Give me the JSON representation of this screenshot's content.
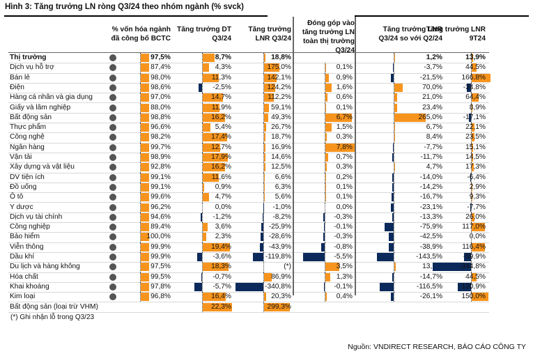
{
  "title": "Hình 3: Tăng trưởng LN ròng Q3/24 theo nhóm ngành (% svck)",
  "headers": [
    "% vốn hóa ngành\nđã công bố BCTC",
    "Tăng trưởng DT\nQ3/24",
    "Tăng trưởng\nLNR Q3/24",
    "Đóng góp vào\ntăng trưởng LN\ntoàn thị trường\nQ3/24",
    "Tăng trưởng LNR\nQ3/24 so với Q2/24",
    "Tăng trưởng LNR\n9T24"
  ],
  "colors": {
    "positive": "#f7941d",
    "negative": "#0b2a5b",
    "dot": "#555555"
  },
  "rows": [
    {
      "name": "Thị trường",
      "bold": true,
      "v": [
        "97,5%",
        "8,7%",
        "18,8%",
        "",
        "1,2%",
        "13,9%"
      ]
    },
    {
      "name": "Dịch vụ hỗ trợ",
      "v": [
        "87,4%",
        "4,3%",
        "175,0%",
        "0,1%",
        "-3,7%",
        "44,5%"
      ]
    },
    {
      "name": "Bán lẻ",
      "v": [
        "98,0%",
        "11,3%",
        "142,1%",
        "0,9%",
        "-21,5%",
        "166,8%"
      ]
    },
    {
      "name": "Điện",
      "v": [
        "98,6%",
        "-2,5%",
        "124,2%",
        "1,6%",
        "70,0%",
        "-34,8%"
      ]
    },
    {
      "name": "Hàng cá nhân và gia dụng",
      "v": [
        "97,0%",
        "14,7%",
        "112,2%",
        "0,6%",
        "21,0%",
        "64,4%"
      ]
    },
    {
      "name": "Giấy và lâm nghiệp",
      "v": [
        "88,0%",
        "11,9%",
        "59,1%",
        "0,1%",
        "23,4%",
        "8,9%"
      ]
    },
    {
      "name": "Bất động sản",
      "v": [
        "98,8%",
        "16,2%",
        "49,3%",
        "6,7%",
        "265,0%",
        "-17,1%"
      ]
    },
    {
      "name": "Thực phẩm",
      "v": [
        "96,6%",
        "5,4%",
        "26,7%",
        "1,5%",
        "6,7%",
        "22,1%"
      ]
    },
    {
      "name": "Công nghệ",
      "v": [
        "98,2%",
        "17,4%",
        "18,7%",
        "0,3%",
        "8,4%",
        "23,5%"
      ]
    },
    {
      "name": "Ngân hàng",
      "v": [
        "99,7%",
        "12,7%",
        "16,9%",
        "7,8%",
        "-7,7%",
        "15,1%"
      ]
    },
    {
      "name": "Vận tải",
      "v": [
        "98,9%",
        "17,9%",
        "14,6%",
        "0,7%",
        "-11,7%",
        "14,5%"
      ]
    },
    {
      "name": "Xây dựng và vật liệu",
      "v": [
        "92,8%",
        "16,2%",
        "12,5%",
        "0,3%",
        "4,7%",
        "17,3%"
      ]
    },
    {
      "name": "DV tiện ích",
      "v": [
        "99,1%",
        "11,6%",
        "6,6%",
        "0,2%",
        "-14,0%",
        "-6,4%"
      ]
    },
    {
      "name": "Đồ uống",
      "v": [
        "99,1%",
        "0,9%",
        "6,3%",
        "0,1%",
        "-14,2%",
        "2,9%"
      ]
    },
    {
      "name": "Ô tô",
      "v": [
        "99,6%",
        "4,7%",
        "5,6%",
        "0,1%",
        "-16,7%",
        "9,3%"
      ]
    },
    {
      "name": "Y dược",
      "v": [
        "96,2%",
        "0,0%",
        "-1,0%",
        "0,0%",
        "-23,1%",
        "-7,7%"
      ]
    },
    {
      "name": "Dịch vụ tài chính",
      "v": [
        "94,6%",
        "-1,2%",
        "-8,2%",
        "-0,3%",
        "-13,3%",
        "26,0%"
      ]
    },
    {
      "name": "Công nghiệp",
      "v": [
        "89,4%",
        "3,6%",
        "-25,9%",
        "-0,1%",
        "-75,9%",
        "117,0%"
      ]
    },
    {
      "name": "Bảo hiểm",
      "v": [
        "100,0%",
        "2,3%",
        "-28,6%",
        "-0,3%",
        "-42,5%",
        "0,0%"
      ]
    },
    {
      "name": "Viễn thông",
      "v": [
        "99,9%",
        "19,4%",
        "-43,9%",
        "-0,8%",
        "-38,9%",
        "116,4%"
      ]
    },
    {
      "name": "Dầu khí",
      "v": [
        "99,9%",
        "-3,6%",
        "-119,8%",
        "-5,5%",
        "-143,5%",
        "-59,9%"
      ]
    },
    {
      "name": "Du lịch và hàng không",
      "v": [
        "97,5%",
        "18,3%",
        "(*)",
        "3,5%",
        "13,1%",
        "-344,8%"
      ]
    },
    {
      "name": "Hóa chất",
      "v": [
        "99,5%",
        "-0,7%",
        "86,9%",
        "1,3%",
        "-14,7%",
        "44,5%"
      ]
    },
    {
      "name": "Khai khoáng",
      "v": [
        "97,8%",
        "-5,7%",
        "-340,8%",
        "-0,1%",
        "-116,5%",
        "-120,9%"
      ]
    },
    {
      "name": "Kim loại",
      "v": [
        "96,8%",
        "16,4%",
        "20,3%",
        "0,4%",
        "-26,1%",
        "150,0%"
      ]
    },
    {
      "name": "Bất động sản (loại trừ VHM)",
      "nodot": true,
      "v": [
        "",
        "22,3%",
        "299,3%",
        "",
        "",
        ""
      ]
    }
  ],
  "footnote": "(*) Ghi nhận lỗ trong Q3/23",
  "source": "Nguồn: VNDIRECT RESEARCH, BÁO CÁO CÔNG TY"
}
